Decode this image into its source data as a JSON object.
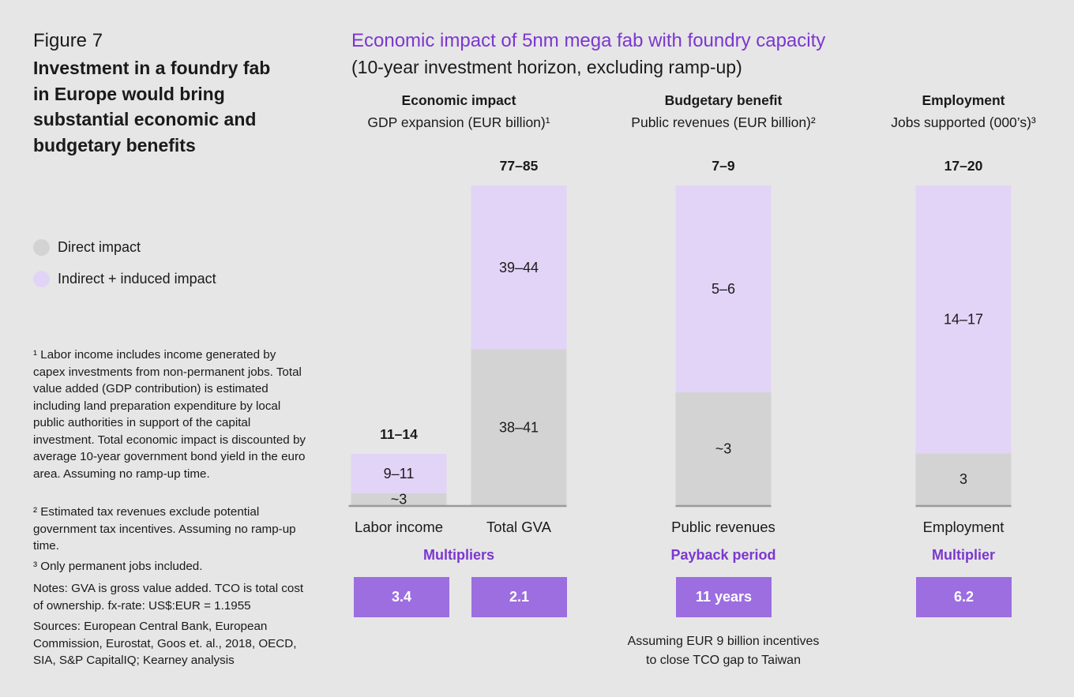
{
  "figure": {
    "label": "Figure 7",
    "title": "Investment in a foundry fab in Europe would bring substantial economic and budgetary benefits"
  },
  "legend": [
    {
      "label": "Direct impact",
      "color": "#d3d3d3"
    },
    {
      "label": "Indirect + induced impact",
      "color": "#e2d4f7"
    }
  ],
  "notes": [
    "¹ Labor income includes income generated by capex investments from non-permanent jobs. Total value added (GDP contribution) is estimated including land preparation expenditure by local public authorities in support of the capital investment. Total economic impact is discounted by average 10-year government bond yield in the euro area. Assuming no ramp-up time.",
    "² Estimated tax revenues exclude potential government tax incentives. Assuming no ramp-up time.",
    "³ Only permanent jobs included.",
    "Notes: GVA is gross value added. TCO is total cost of ownership. fx-rate: US$:EUR = 1.1955",
    "Sources: European Central Bank, European Commission, Eurostat, Goos et. al., 2018, OECD, SIA, S&P CapitalIQ; Kearney analysis"
  ],
  "chart": {
    "title": "Economic impact of 5nm mega fab with foundry capacity",
    "subtitle": "(10-year investment horizon, excluding ramp-up)"
  },
  "sections": [
    {
      "heading": "Economic impact",
      "subheading": "GDP expansion (EUR billion)¹",
      "multiplier_heading": "Multipliers"
    },
    {
      "heading": "Budgetary benefit",
      "subheading": "Public revenues (EUR billion)²",
      "multiplier_heading": "Payback period"
    },
    {
      "heading": "Employment",
      "subheading": "Jobs supported (000’s)³",
      "multiplier_heading": "Multiplier"
    }
  ],
  "multipliers": [
    "3.4",
    "2.1",
    "11 years",
    "6.2"
  ],
  "footnote": [
    "Assuming EUR 9 billion incentives",
    "to close TCO gap to Taiwan"
  ],
  "colors": {
    "direct": "#d3d3d3",
    "indirect": "#e2d4f7",
    "accent": "#7b37cf",
    "box": "#9c6ee0",
    "baseline": "#9a9a9a"
  },
  "chart_data": [
    {
      "type": "bar",
      "stacked": true,
      "categories": [
        "Labor income",
        "Total GVA"
      ],
      "series": [
        {
          "name": "Direct impact",
          "values": [
            3,
            39.5
          ],
          "labels": [
            "~3",
            "38–41"
          ]
        },
        {
          "name": "Indirect + induced impact",
          "values": [
            10,
            41.5
          ],
          "labels": [
            "9–11",
            "39–44"
          ]
        }
      ],
      "totals": [
        "11–14",
        "77–85"
      ],
      "ylim": [
        0,
        81
      ]
    },
    {
      "type": "bar",
      "stacked": true,
      "categories": [
        "Public revenues"
      ],
      "series": [
        {
          "name": "Direct impact",
          "values": [
            3
          ],
          "labels": [
            "~3"
          ]
        },
        {
          "name": "Indirect + induced impact",
          "values": [
            5.5
          ],
          "labels": [
            "5–6"
          ]
        }
      ],
      "totals": [
        "7–9"
      ],
      "ylim": [
        0,
        8.5
      ]
    },
    {
      "type": "bar",
      "stacked": true,
      "categories": [
        "Employment"
      ],
      "series": [
        {
          "name": "Direct impact",
          "values": [
            3
          ],
          "labels": [
            "3"
          ]
        },
        {
          "name": "Indirect + induced impact",
          "values": [
            15.5
          ],
          "labels": [
            "14–17"
          ]
        }
      ],
      "totals": [
        "17–20"
      ],
      "ylim": [
        0,
        18.5
      ]
    }
  ]
}
